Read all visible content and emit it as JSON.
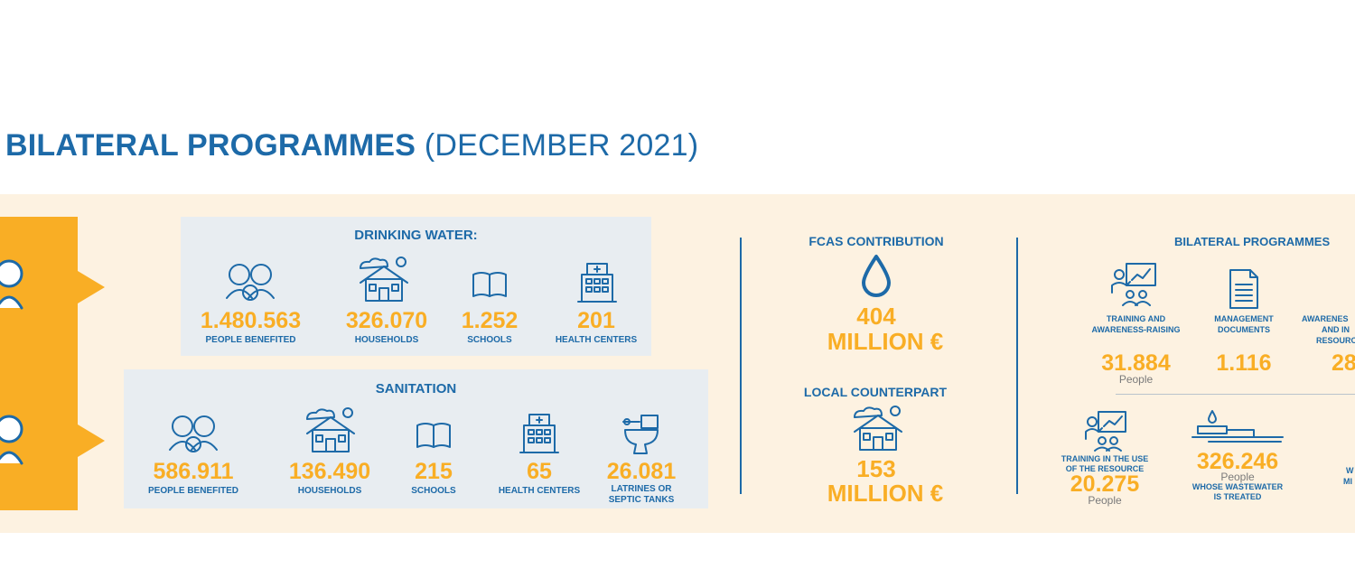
{
  "title": {
    "bold": "BILATERAL PROGRAMMES",
    "rest": "(DECEMBER 2021)"
  },
  "drinking_water": {
    "header": "DRINKING WATER:",
    "items": [
      {
        "value": "1.480.563",
        "label": "PEOPLE BENEFITED",
        "icon": "people-icon"
      },
      {
        "value": "326.070",
        "label": "HOUSEHOLDS",
        "icon": "house-icon"
      },
      {
        "value": "1.252",
        "label": "SCHOOLS",
        "icon": "book-icon"
      },
      {
        "value": "201",
        "label": "HEALTH CENTERS",
        "icon": "hospital-icon"
      }
    ]
  },
  "sanitation": {
    "header": "SANITATION",
    "items": [
      {
        "value": "586.911",
        "label": "PEOPLE BENEFITED",
        "icon": "people-icon"
      },
      {
        "value": "136.490",
        "label": "HOUSEHOLDS",
        "icon": "house-icon"
      },
      {
        "value": "215",
        "label": "SCHOOLS",
        "icon": "book-icon"
      },
      {
        "value": "65",
        "label": "HEALTH CENTERS",
        "icon": "hospital-icon"
      },
      {
        "value": "26.081",
        "label1": "LATRINES OR",
        "label2": "SEPTIC TANKS",
        "icon": "toilet-icon"
      }
    ]
  },
  "fcas": {
    "header": "FCAS CONTRIBUTION",
    "value": "404",
    "unit": "MILLION €",
    "icon": "water-drop-icon"
  },
  "local": {
    "header": "LOCAL COUNTERPART",
    "value": "153",
    "unit": "MILLION €",
    "icon": "house-icon"
  },
  "bilateral": {
    "header": "BILATERAL PROGRAMMES",
    "training": {
      "label1": "TRAINING AND",
      "label2": "AWARENESS-RAISING",
      "value": "31.884",
      "unit": "People",
      "icon": "training-icon"
    },
    "management": {
      "label1": "MANAGEMENT",
      "label2": "DOCUMENTS",
      "value": "1.116",
      "icon": "document-icon"
    },
    "awareness": {
      "label1": "AWARENES",
      "label2": "AND IN",
      "label3": "RESOURC",
      "value": "28"
    },
    "training_use": {
      "label1": "TRAINING IN THE USE",
      "label2": "OF THE RESOURCE",
      "value": "20.275",
      "unit": "People",
      "icon": "training-icon"
    },
    "wastewater": {
      "value": "326.246",
      "unit": "People",
      "label1": "WHOSE WASTEWATER",
      "label2": "IS TREATED",
      "icon": "treatment-plant-icon"
    },
    "cut": {
      "label1": "W",
      "label2": "MI"
    }
  },
  "colors": {
    "blue": "#1d6aa8",
    "orange": "#f9ae25",
    "panel": "#fdf2e1",
    "box": "#e8edf1"
  }
}
